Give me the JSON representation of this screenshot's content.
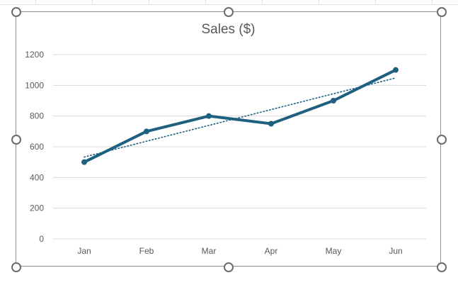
{
  "chart_data": {
    "type": "line",
    "title": "Sales ($)",
    "categories": [
      "Jan",
      "Feb",
      "Mar",
      "Apr",
      "May",
      "Jun"
    ],
    "series": [
      {
        "values": [
          500,
          700,
          800,
          750,
          900,
          1100
        ],
        "color": "#1f5f7f"
      }
    ],
    "trendline": {
      "type": "linear",
      "style": "dotted",
      "color": "#1f5f7f",
      "start": 533,
      "end": 1048
    },
    "ylim": [
      0,
      1200
    ],
    "yticks": [
      0,
      200,
      400,
      600,
      800,
      1000,
      1200
    ],
    "xlabel": "",
    "ylabel": "",
    "grid": true,
    "legend": "none",
    "colors": {
      "series": "#1f5f7f",
      "grid": "#d9d9d9",
      "tick_text": "#595959",
      "title": "#595959"
    }
  }
}
